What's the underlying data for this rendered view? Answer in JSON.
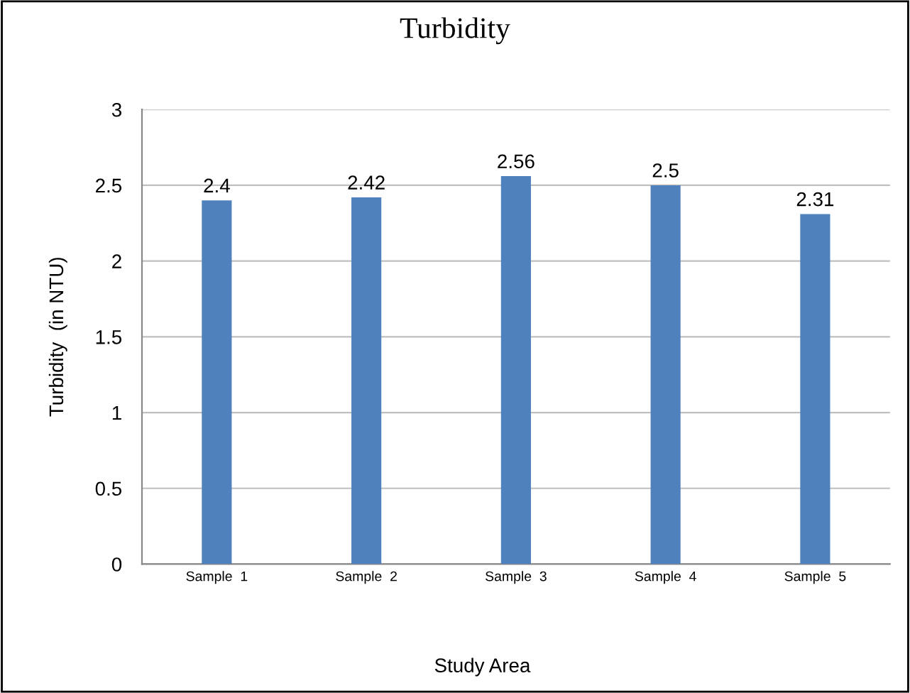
{
  "chart_data": {
    "type": "bar",
    "title": "Turbidity",
    "xlabel": "Study Area",
    "ylabel": "Turbidity  (in NTU)",
    "categories": [
      "Sample  1",
      "Sample  2",
      "Sample  3",
      "Sample  4",
      "Sample  5"
    ],
    "values": [
      2.4,
      2.42,
      2.56,
      2.5,
      2.31
    ],
    "color": "#4f81bd",
    "ylim": [
      0,
      3
    ],
    "yticks": [
      0,
      0.5,
      1,
      1.5,
      2,
      2.5,
      3
    ],
    "grid": "y",
    "data_labels": true
  }
}
